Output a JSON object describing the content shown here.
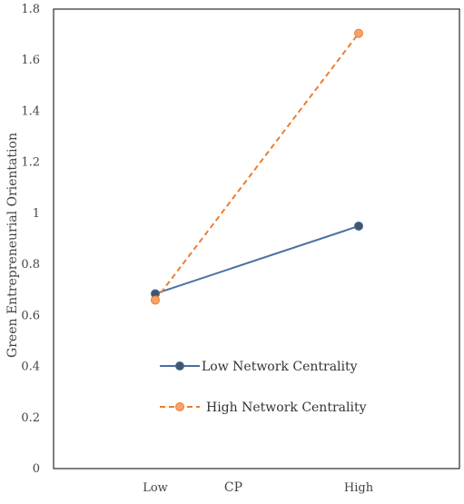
{
  "chart_data": {
    "type": "line",
    "title": "",
    "xlabel": "CP",
    "ylabel": "Green Entrepreneurial Orientation",
    "categories": [
      "Low",
      "High"
    ],
    "ylim": [
      0,
      1.8
    ],
    "yticks": [
      0,
      0.2,
      0.4,
      0.6,
      0.8,
      1,
      1.2,
      1.4,
      1.6,
      1.8
    ],
    "ytick_labels": [
      "0",
      "0.2",
      "0.4",
      "0.6",
      "0.8",
      "1",
      "1.2",
      "1.4",
      "1.6",
      "1.8"
    ],
    "grid": false,
    "legend_position": "center-bottom",
    "series": [
      {
        "name": "Low Network Centrality",
        "values": [
          0.685,
          0.95
        ],
        "color": "#4a6fa5",
        "line_style": "solid",
        "marker_color": "#44546a"
      },
      {
        "name": "High Network Centrality",
        "values": [
          0.66,
          1.705
        ],
        "color": "#ed7d31",
        "line_style": "dashed",
        "marker_color": "#f4a46c"
      }
    ]
  }
}
